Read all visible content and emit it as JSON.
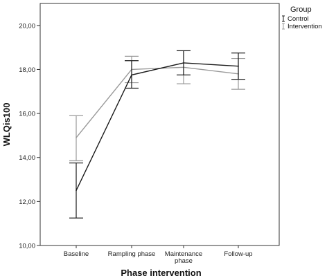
{
  "chart_data": {
    "type": "line",
    "title": "",
    "xlabel": "Phase intervention",
    "ylabel": "WLQis100",
    "ylim": [
      10,
      21
    ],
    "yticks": [
      10,
      12,
      14,
      16,
      18,
      20
    ],
    "yticks_format": "comma_2dec",
    "categories": [
      [
        "Baseline"
      ],
      [
        "Rampling phase"
      ],
      [
        "Maintenance",
        "phase"
      ],
      [
        "Follow-up"
      ]
    ],
    "series": [
      {
        "name": "Control",
        "color": "#1a1a1a",
        "values": [
          12.5,
          17.75,
          18.3,
          18.15
        ],
        "error_low": [
          11.25,
          17.15,
          17.75,
          17.55
        ],
        "error_high": [
          13.75,
          18.4,
          18.85,
          18.75
        ]
      },
      {
        "name": "Intervention",
        "color": "#9a9a9a",
        "values": [
          14.9,
          18.0,
          18.1,
          17.8
        ],
        "error_low": [
          13.85,
          17.4,
          17.35,
          17.1
        ],
        "error_high": [
          15.9,
          18.6,
          18.85,
          18.5
        ]
      }
    ],
    "legend": {
      "title": "Group",
      "placement": "top-right"
    },
    "grid": false
  }
}
